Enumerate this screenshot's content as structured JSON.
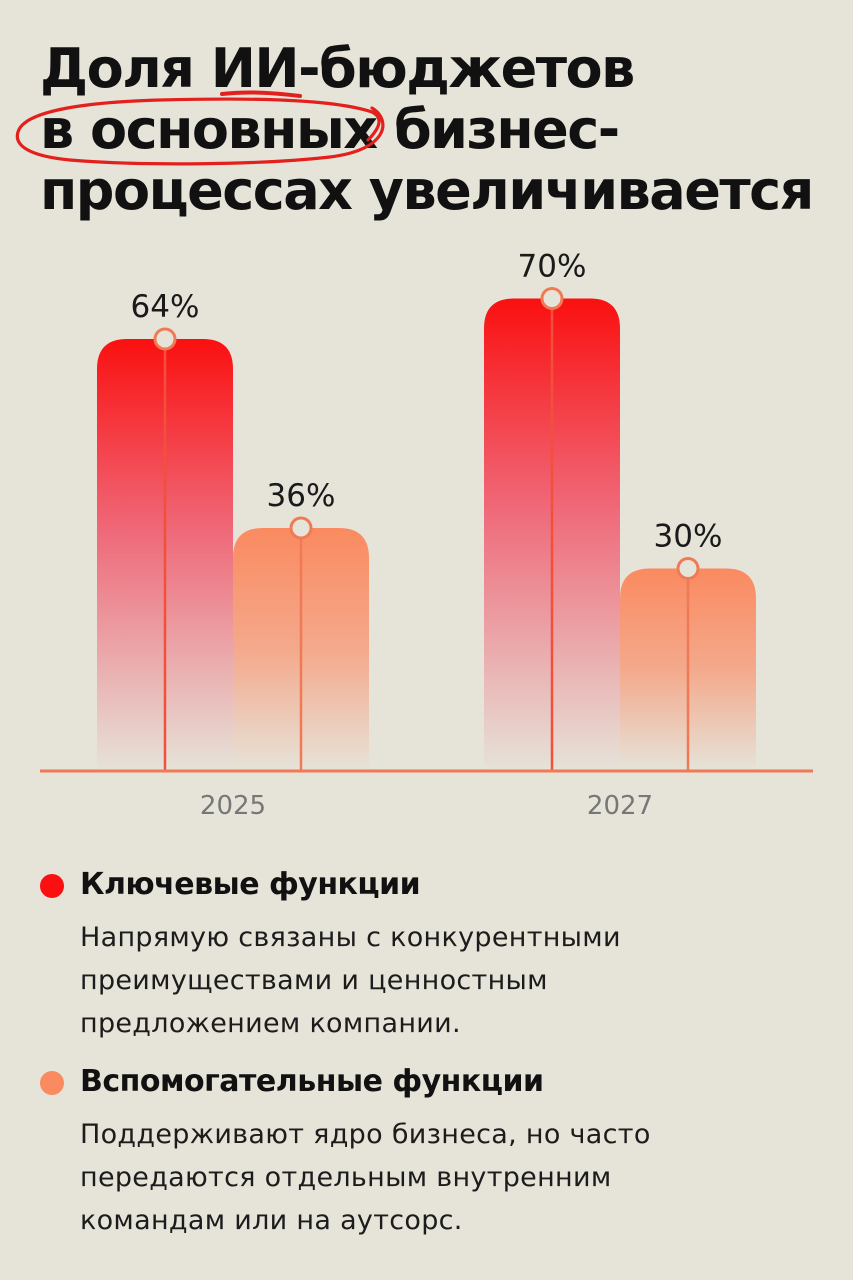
{
  "title": {
    "line1_a": "Доля ",
    "line1_highlight": "ИИ",
    "line1_b": "-бюджетов",
    "line2_circled": "в основных",
    "line2_b": " бизнес-",
    "line3": "процессах увеличивается"
  },
  "colors": {
    "background": "#e6e3d9",
    "key": "#fa1010",
    "support": "#fa8a60",
    "accent_line": "#f07a55",
    "scribble": "#e3201b"
  },
  "chart_data": {
    "type": "bar",
    "categories": [
      "2025",
      "2027"
    ],
    "series": [
      {
        "name": "Ключевые функции",
        "values": [
          64,
          70
        ],
        "labels": [
          "64%",
          "70%"
        ]
      },
      {
        "name": "Вспомогательные функции",
        "values": [
          36,
          30
        ],
        "labels": [
          "36%",
          "30%"
        ]
      }
    ],
    "ylim": [
      0,
      100
    ],
    "grid": false,
    "legend": "bottom"
  },
  "legend": [
    {
      "title": "Ключевые функции",
      "lines": [
        "Напрямую связаны с конкурентными",
        "преимуществами и ценностным",
        "предложением компании."
      ]
    },
    {
      "title": "Вспомогательные функции",
      "lines": [
        "Поддерживают ядро бизнеса, но часто",
        "передаются отдельным внутренним",
        "командам или на аутсорс."
      ]
    }
  ]
}
